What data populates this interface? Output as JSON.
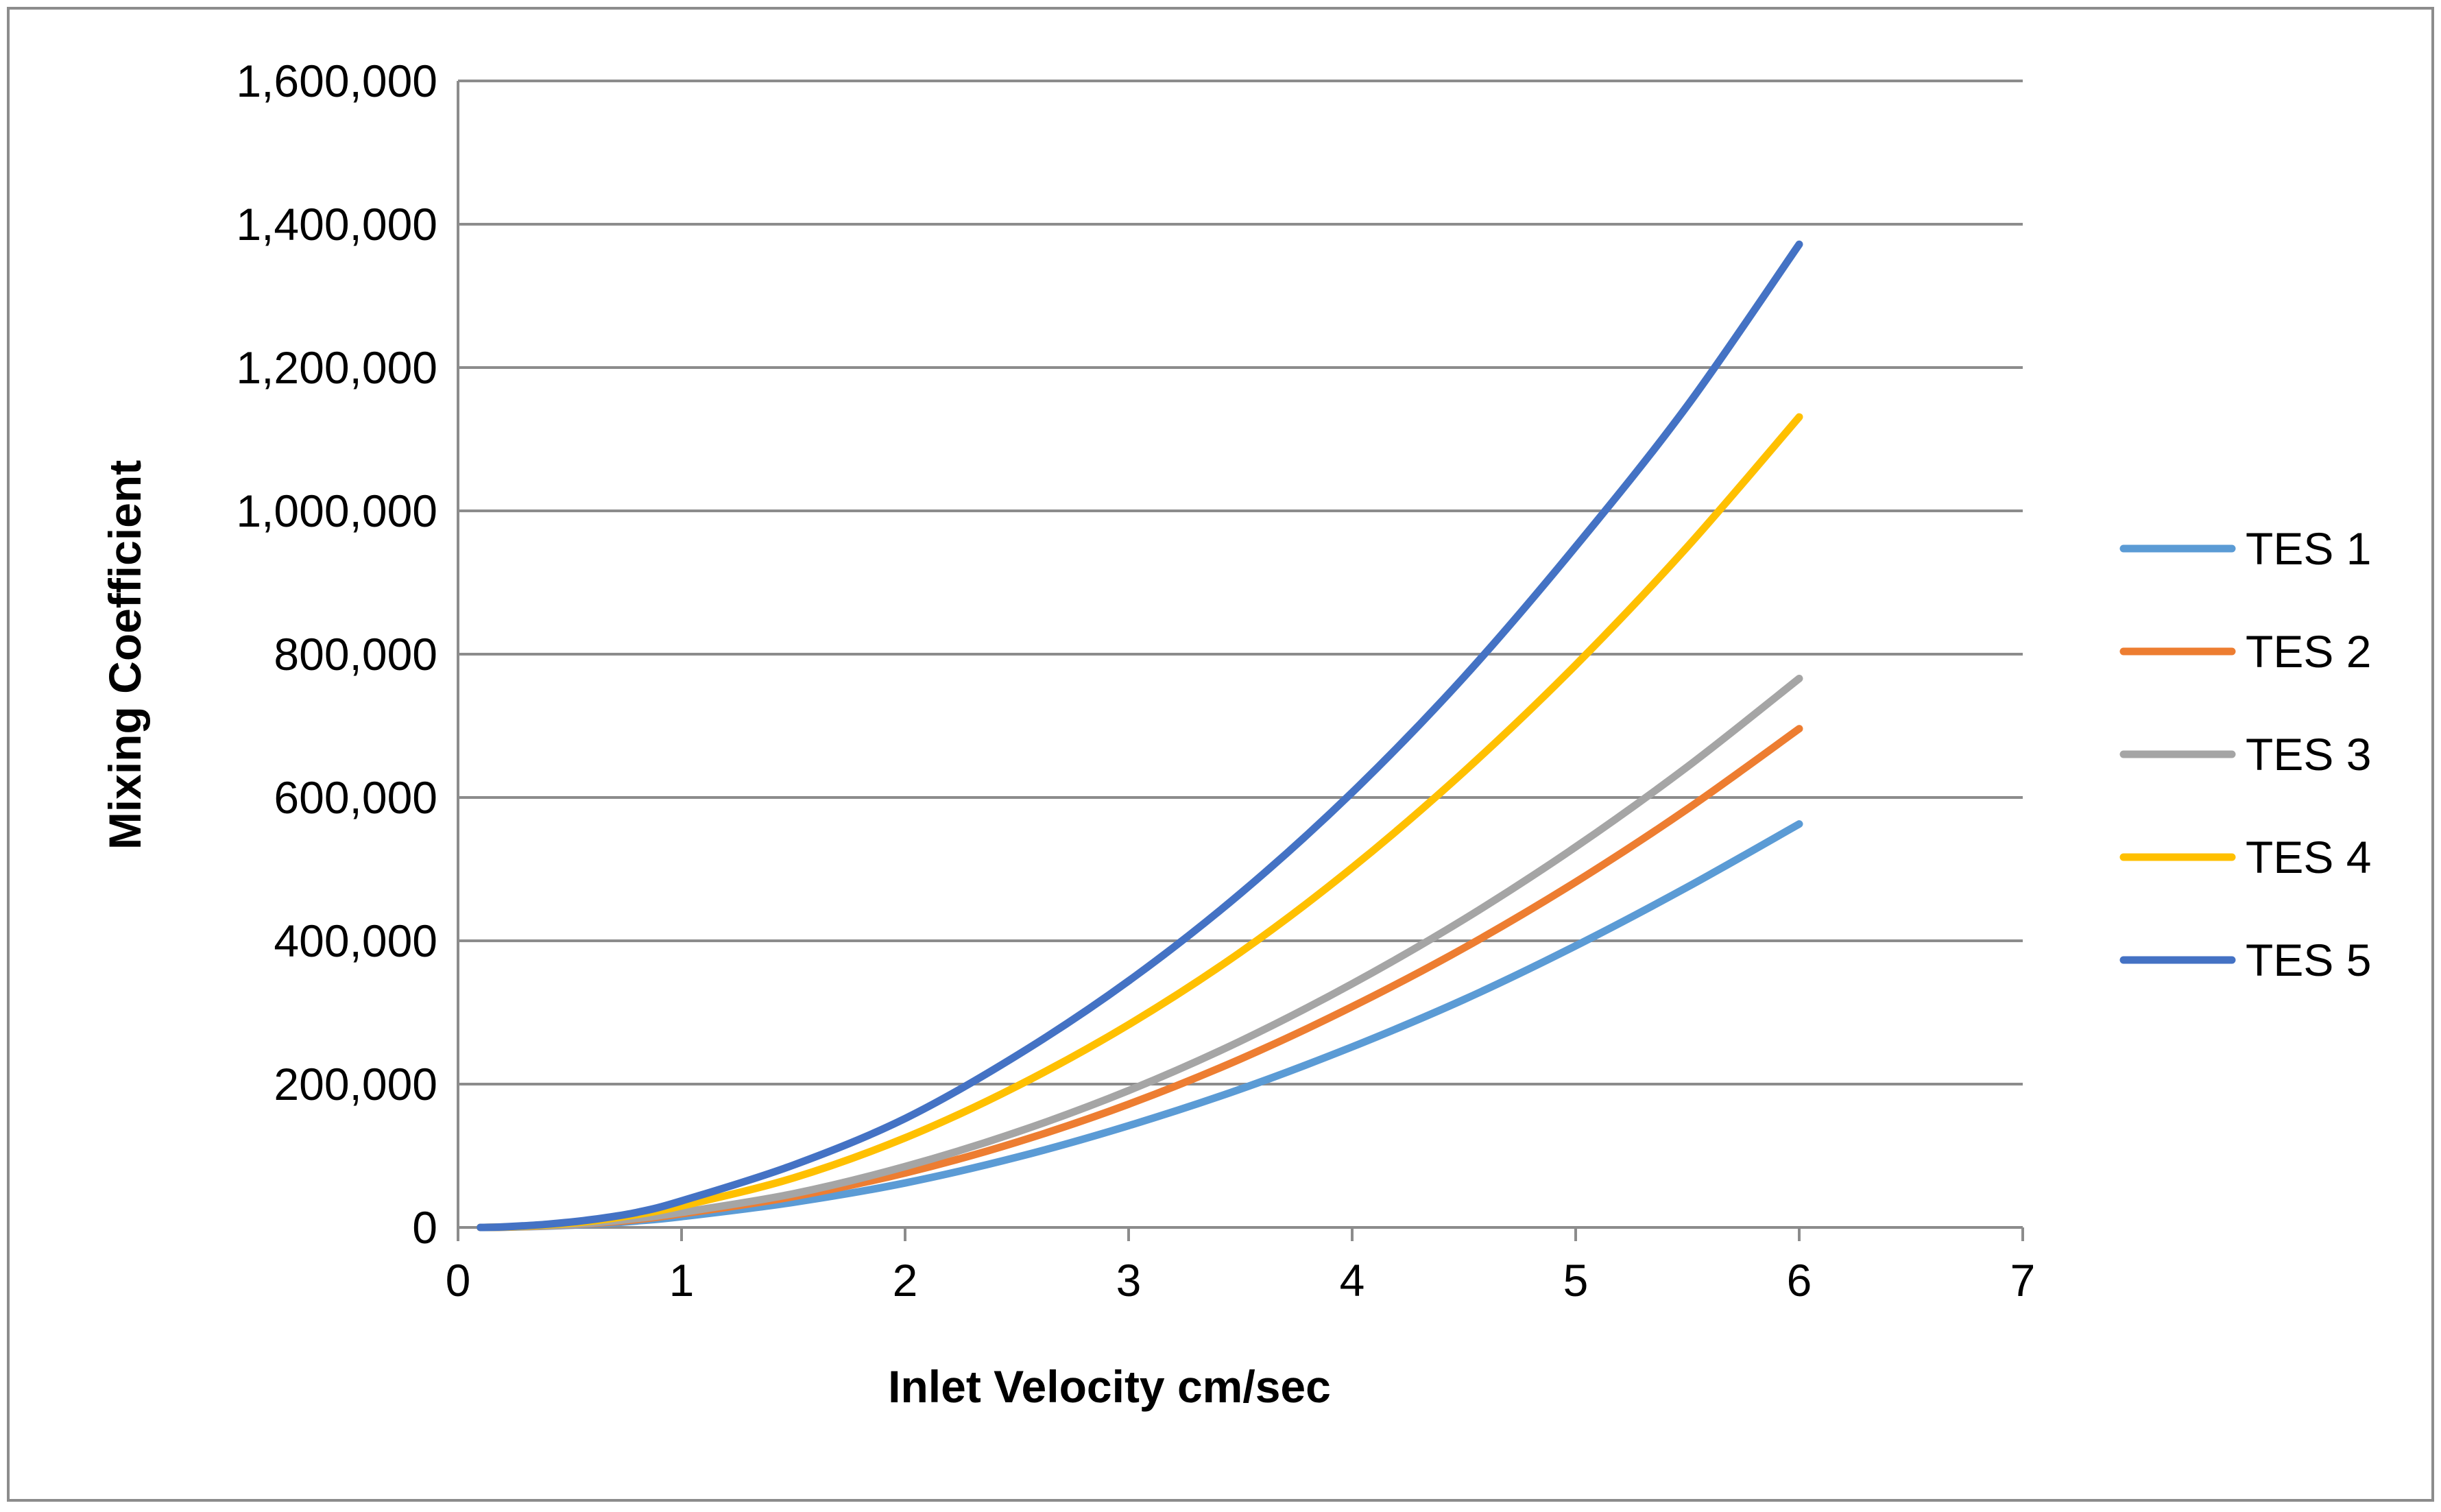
{
  "chart_data": {
    "type": "line",
    "title": "",
    "xlabel": "Inlet Velocity cm/sec",
    "ylabel": "Mixing Coefficient",
    "xlim": [
      0,
      7
    ],
    "ylim": [
      0,
      1600000
    ],
    "x_ticks": [
      0,
      1,
      2,
      3,
      4,
      5,
      6,
      7
    ],
    "x_tick_labels": [
      "0",
      "1",
      "2",
      "3",
      "4",
      "5",
      "6",
      "7"
    ],
    "y_ticks": [
      0,
      200000,
      400000,
      600000,
      800000,
      1000000,
      1200000,
      1400000,
      1600000
    ],
    "y_tick_labels": [
      "0",
      "200,000",
      "400,000",
      "600,000",
      "800,000",
      "1,000,000",
      "1,200,000",
      "1,400,000",
      "1,600,000"
    ],
    "grid": true,
    "legend_position": "right",
    "x": [
      0.1,
      0.2,
      0.4,
      0.6,
      0.8,
      1,
      1.5,
      2,
      2.5,
      3,
      3.5,
      4,
      4.5,
      5,
      5.5,
      6
    ],
    "series": [
      {
        "name": "TES 1",
        "color": "#5B9BD5",
        "values": [
          0,
          300,
          1800,
          4500,
          9000,
          15000,
          35000,
          62000,
          98000,
          142000,
          193000,
          252000,
          318000,
          393000,
          475000,
          563000
        ]
      },
      {
        "name": "TES 2",
        "color": "#ED7D31",
        "values": [
          0,
          400,
          2200,
          5500,
          11000,
          19000,
          43000,
          76000,
          119000,
          172000,
          235000,
          308000,
          390000,
          482000,
          584000,
          696000
        ]
      },
      {
        "name": "TES 3",
        "color": "#A5A5A5",
        "values": [
          0,
          450,
          2500,
          6200,
          12500,
          21000,
          47000,
          85000,
          133000,
          191000,
          260000,
          340000,
          430000,
          531000,
          643000,
          766000
        ]
      },
      {
        "name": "TES 4",
        "color": "#FFC000",
        "values": [
          0,
          600,
          3500,
          9000,
          18000,
          30000,
          69000,
          125000,
          197000,
          283000,
          384000,
          502000,
          636000,
          785000,
          950000,
          1131000
        ]
      },
      {
        "name": "TES 5",
        "color": "#4472C4",
        "values": [
          0,
          800,
          4500,
          11000,
          21000,
          37000,
          87000,
          152000,
          240000,
          344000,
          466000,
          607000,
          768000,
          950000,
          1147000,
          1372000
        ]
      }
    ]
  }
}
